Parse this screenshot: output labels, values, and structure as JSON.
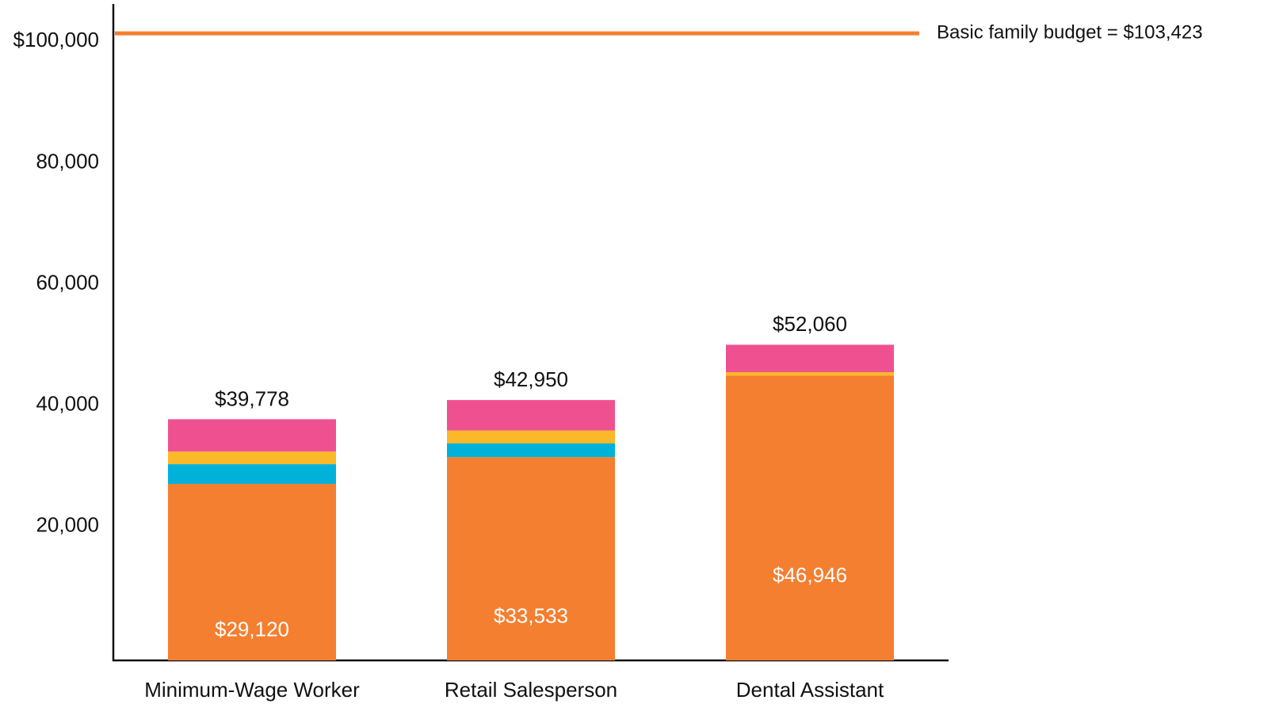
{
  "chart_data": {
    "type": "stacked_bar",
    "categories": [
      "Minimum-Wage Worker",
      "Retail Salesperson",
      "Dental Assistant"
    ],
    "series": [
      {
        "color": "#f47f30",
        "values": [
          29120,
          33533,
          46946
        ],
        "value_labels": [
          "$29,120",
          "$33,533",
          "$46,946"
        ]
      },
      {
        "color": "#00b1d9",
        "values": [
          3250,
          2255,
          0
        ]
      },
      {
        "color": "#fbb829",
        "values": [
          2080,
          2122,
          590
        ]
      },
      {
        "color": "#ef5190",
        "values": [
          5328,
          5040,
          4524
        ]
      }
    ],
    "totals": [
      39778,
      42950,
      52060
    ],
    "total_labels": [
      "$39,778",
      "$42,950",
      "$52,060"
    ],
    "reference": {
      "value": 103423,
      "label": "Basic family budget = $103,423",
      "color": "#f47f30"
    },
    "ylim": [
      0,
      105000
    ],
    "yticks": [
      {
        "value": 20000,
        "label": "20,000"
      },
      {
        "value": 40000,
        "label": "40,000"
      },
      {
        "value": 60000,
        "label": "60,000"
      },
      {
        "value": 80000,
        "label": "80,000"
      },
      {
        "value": 100000,
        "label": "$100,000"
      }
    ],
    "grid": false
  }
}
